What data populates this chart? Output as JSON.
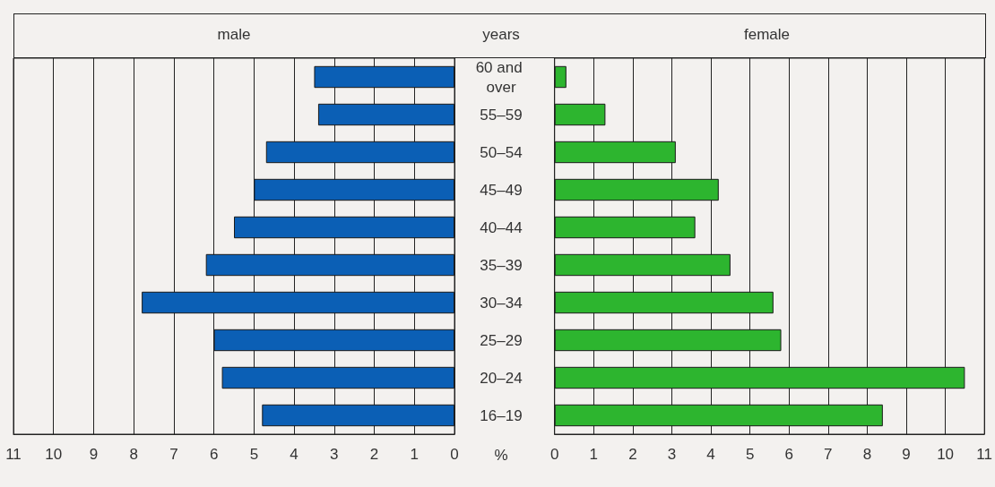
{
  "chart_data": [
    {
      "type": "bar",
      "orientation": "horizontal",
      "title": "male",
      "ylabel": "years",
      "xlabel": "%",
      "categories": [
        "60 and over",
        "55–59",
        "50–54",
        "45–49",
        "40–44",
        "35–39",
        "30–34",
        "25–29",
        "20–24",
        "16–19"
      ],
      "series": [
        {
          "color": "#0b5fb5",
          "values": [
            3.5,
            3.4,
            4.7,
            5.0,
            5.5,
            6.2,
            7.8,
            6.0,
            5.8,
            4.8
          ]
        }
      ],
      "xlim": [
        11,
        0
      ],
      "xticks": [
        0,
        1,
        2,
        3,
        4,
        5,
        6,
        7,
        8,
        9,
        10,
        11
      ],
      "grid": "x"
    },
    {
      "type": "bar",
      "orientation": "horizontal",
      "title": "female",
      "categories": [
        "60 and over",
        "55–59",
        "50–54",
        "45–49",
        "40–44",
        "35–39",
        "30–34",
        "25–29",
        "20–24",
        "16–19"
      ],
      "series": [
        {
          "color": "#2db52f",
          "values": [
            0.3,
            1.3,
            3.1,
            4.2,
            3.6,
            4.5,
            5.6,
            5.8,
            10.5,
            8.4
          ]
        }
      ],
      "xlim": [
        0,
        11
      ],
      "xticks": [
        0,
        1,
        2,
        3,
        4,
        5,
        6,
        7,
        8,
        9,
        10,
        11
      ],
      "grid": "x",
      "tick_labels": "x"
    }
  ]
}
